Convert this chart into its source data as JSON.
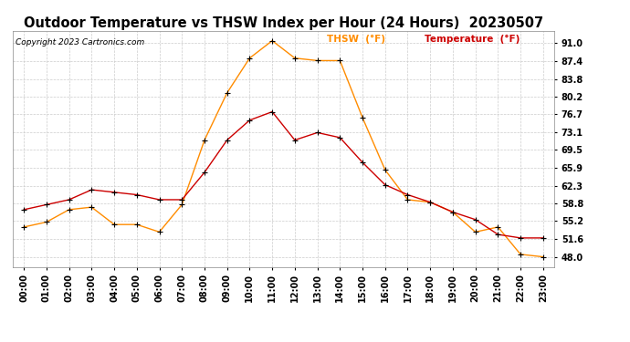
{
  "title": "Outdoor Temperature vs THSW Index per Hour (24 Hours)  20230507",
  "copyright": "Copyright 2023 Cartronics.com",
  "legend_thsw": "THSW  (°F)",
  "legend_temp": "Temperature  (°F)",
  "hours": [
    "00:00",
    "01:00",
    "02:00",
    "03:00",
    "04:00",
    "05:00",
    "06:00",
    "07:00",
    "08:00",
    "09:00",
    "10:00",
    "11:00",
    "12:00",
    "13:00",
    "14:00",
    "15:00",
    "16:00",
    "17:00",
    "18:00",
    "19:00",
    "20:00",
    "21:00",
    "22:00",
    "23:00"
  ],
  "temperature": [
    57.5,
    58.5,
    59.5,
    61.5,
    61.0,
    60.5,
    59.5,
    59.5,
    65.0,
    71.5,
    75.5,
    77.2,
    71.5,
    73.0,
    72.0,
    67.0,
    62.5,
    60.5,
    59.0,
    57.0,
    55.5,
    52.5,
    51.8,
    51.8
  ],
  "thsw": [
    54.0,
    55.0,
    57.5,
    58.0,
    54.5,
    54.5,
    53.0,
    58.5,
    71.5,
    81.0,
    88.0,
    91.5,
    88.0,
    87.5,
    87.5,
    76.0,
    65.5,
    59.5,
    59.0,
    57.0,
    53.0,
    54.0,
    48.5,
    48.0
  ],
  "ylim_min": 46.0,
  "ylim_max": 93.5,
  "yticks": [
    48.0,
    51.6,
    55.2,
    58.8,
    62.3,
    65.9,
    69.5,
    73.1,
    76.7,
    80.2,
    83.8,
    87.4,
    91.0
  ],
  "thsw_color": "#FF8C00",
  "temp_color": "#CC0000",
  "marker_color": "#000000",
  "bg_color": "#FFFFFF",
  "grid_color": "#CCCCCC",
  "title_color": "#000000",
  "copyright_color": "#000000",
  "legend_thsw_color": "#FF8C00",
  "legend_temp_color": "#CC0000",
  "title_fontsize": 10.5,
  "copyright_fontsize": 6.5,
  "legend_fontsize": 7.5,
  "tick_fontsize": 7,
  "figwidth": 6.9,
  "figheight": 3.75,
  "dpi": 100
}
